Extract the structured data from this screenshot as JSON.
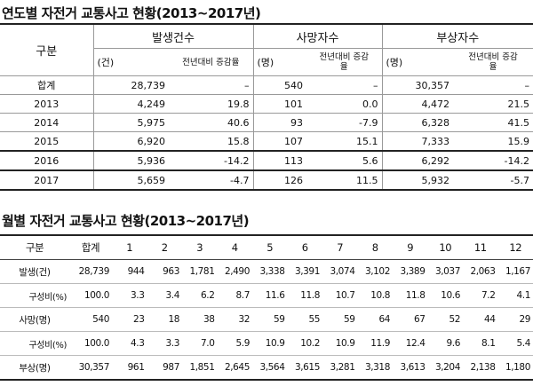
{
  "table1": {
    "title": "연도별 자전거 교통사고 현황(2013~2017년)",
    "header_row1": [
      "구분",
      "발생건수",
      "사망자수",
      "부상자수"
    ],
    "header_row2": [
      "(건)",
      "전년대비 증감율",
      "(명)",
      "전년대비 증감율",
      "(명)",
      "전년대비 증감율"
    ],
    "rows": [
      [
        "합계",
        "28,739",
        "–",
        "540",
        "–",
        "30,357",
        "–"
      ],
      [
        "2013",
        "4,249",
        "19.8",
        "101",
        "0.0",
        "4,472",
        "21.5"
      ],
      [
        "2014",
        "5,975",
        "40.6",
        "93",
        "-7.9",
        "6,328",
        "41.5"
      ],
      [
        "2015",
        "6,920",
        "15.8",
        "107",
        "15.1",
        "7,333",
        "15.9"
      ],
      [
        "2016",
        "5,936",
        "-14.2",
        "113",
        "5.6",
        "6,292",
        "-14.2"
      ],
      [
        "2017",
        "5,659",
        "-4.7",
        "126",
        "11.5",
        "5,932",
        "-5.7"
      ]
    ]
  },
  "table2": {
    "title": "월별 자전거 교통사고 현황(2013~2017년)",
    "header": [
      "구분",
      "합계",
      "1",
      "2",
      "3",
      "4",
      "5",
      "6",
      "7",
      "8",
      "9",
      "10",
      "11",
      "12"
    ],
    "rows": [
      [
        "발생(건)",
        "28,739",
        "944",
        "963",
        "1,781",
        "2,490",
        "3,338",
        "3,391",
        "3,074",
        "3,102",
        "3,389",
        "3,037",
        "2,063",
        "1,167"
      ],
      [
        "구성비(%)",
        "100.0",
        "3.3",
        "3.4",
        "6.2",
        "8.7",
        "11.6",
        "11.8",
        "10.7",
        "10.8",
        "11.8",
        "10.6",
        "7.2",
        "4.1"
      ],
      [
        "사망(명)",
        "540",
        "23",
        "18",
        "38",
        "32",
        "59",
        "55",
        "59",
        "64",
        "67",
        "52",
        "44",
        "29"
      ],
      [
        "구성비(%)",
        "100.0",
        "4.3",
        "3.3",
        "7.0",
        "5.9",
        "10.9",
        "10.2",
        "10.9",
        "11.9",
        "12.4",
        "9.6",
        "8.1",
        "5.4"
      ],
      [
        "부상(명)",
        "30,357",
        "961",
        "987",
        "1,851",
        "2,645",
        "3,564",
        "3,615",
        "3,281",
        "3,318",
        "3,613",
        "3,204",
        "2,138",
        "1,180"
      ]
    ]
  }
}
